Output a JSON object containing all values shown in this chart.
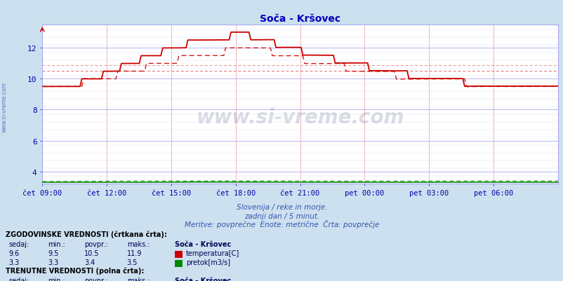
{
  "title": "Soča - Kršovec",
  "subtitle1": "Slovenija / reke in morje.",
  "subtitle2": "zadnji dan / 5 minut.",
  "subtitle3": "Meritve: povprečne  Enote: metrične  Črta: povprečje",
  "bg_color": "#cde0f0",
  "plot_bg_color": "#ffffff",
  "grid_color_v": "#ee9999",
  "grid_color_h": "#aaaaee",
  "grid_color_h_minor": "#ddddff",
  "title_color": "#0000bb",
  "subtitle_color": "#3355aa",
  "text_color": "#000055",
  "label_color": "#0000aa",
  "temp_color": "#cc0000",
  "flow_color": "#008800",
  "y_min": 3.2,
  "y_max": 13.5,
  "y_ticks": [
    4,
    6,
    8,
    10,
    12
  ],
  "x_tick_labels": [
    "čet 09:00",
    "čet 12:00",
    "čet 15:00",
    "čet 18:00",
    "čet 21:00",
    "pet 00:00",
    "pet 03:00",
    "pet 06:00"
  ],
  "hist_temp_avg": 10.5,
  "hist_temp_min": 9.5,
  "hist_temp_max": 11.9,
  "hist_temp_current": 9.6,
  "hist_flow_avg": 3.4,
  "hist_flow_min": 3.3,
  "hist_flow_max": 3.5,
  "hist_flow_current": 3.3,
  "curr_temp_avg": 10.9,
  "curr_temp_min": 9.4,
  "curr_temp_max": 12.8,
  "curr_temp_current": 9.4,
  "curr_flow_avg": 3.3,
  "curr_flow_min": 3.3,
  "curr_flow_max": 3.5,
  "curr_flow_current": 3.3,
  "n_points": 288,
  "watermark": "www.si-vreme.com"
}
